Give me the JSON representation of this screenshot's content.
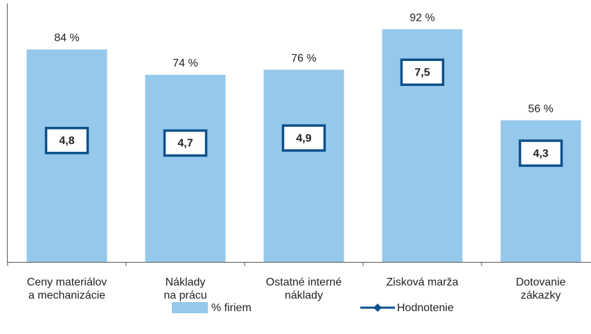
{
  "chart_data": {
    "type": "bar",
    "categories": [
      "Ceny materiálov\na mechanizácie",
      "Náklady\nna prácu",
      "Ostatné interné\nnáklady",
      "Zisková marža",
      "Dotovanie\nzákazky"
    ],
    "series": [
      {
        "name": "% firiem",
        "color": "#95c8ea",
        "values": [
          84,
          74,
          76,
          92,
          56
        ],
        "value_labels": [
          "84 %",
          "74 %",
          "76 %",
          "92 %",
          "56 %"
        ]
      },
      {
        "name": "Hodnotenie",
        "color": "#0d4f8b",
        "axis": "y2",
        "values": [
          4.8,
          4.7,
          4.9,
          7.5,
          4.3
        ],
        "value_labels": [
          "4,8",
          "4,7",
          "4,9",
          "7,5",
          "4,3"
        ]
      }
    ],
    "ylim": [
      0,
      100
    ],
    "y2lim": [
      0,
      10
    ]
  }
}
